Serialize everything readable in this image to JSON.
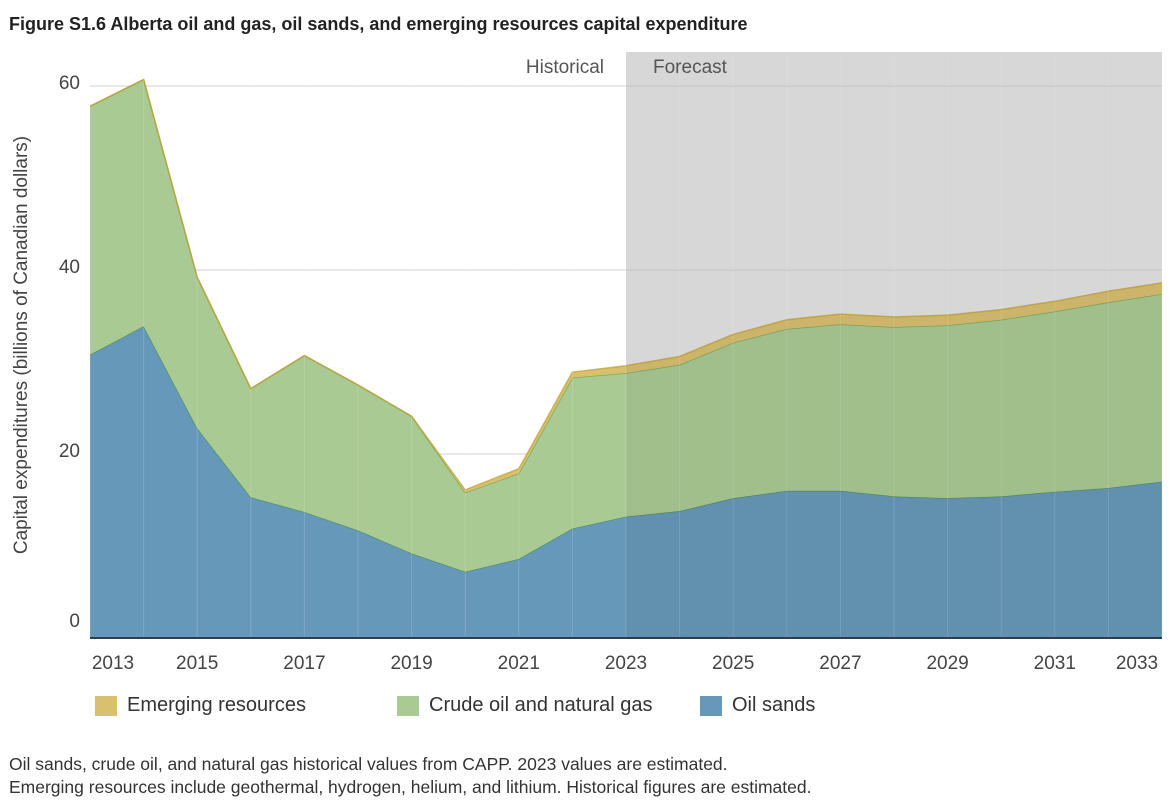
{
  "title": "Figure S1.6  Alberta oil and gas, oil sands, and emerging resources capital expenditure",
  "chart_data": {
    "type": "area",
    "stacked": true,
    "title": "Figure S1.6  Alberta oil and gas, oil sands, and emerging resources capital expenditure",
    "xlabel": "",
    "ylabel": "Capital expenditures (billions of Canadian dollars)",
    "ylim": [
      0,
      63.7
    ],
    "xlim": [
      2013,
      2033
    ],
    "yticks": [
      "0",
      "20",
      "40",
      "60"
    ],
    "xticks": [
      "2013",
      "2015",
      "2017",
      "2019",
      "2021",
      "2023",
      "2025",
      "2027",
      "2029",
      "2031",
      "2033"
    ],
    "grid": true,
    "legend_position": "bottom",
    "annotations": {
      "historical": "Historical",
      "forecast": "Forecast",
      "forecast_start": 2023
    },
    "x": [
      2013,
      2014,
      2015,
      2016,
      2017,
      2018,
      2019,
      2020,
      2021,
      2022,
      2023,
      2024,
      2025,
      2026,
      2027,
      2028,
      2029,
      2030,
      2031,
      2032,
      2033
    ],
    "series": [
      {
        "name": "Oil sands",
        "color": "#6699b9",
        "values": [
          30.8,
          33.9,
          22.8,
          15.3,
          13.7,
          11.7,
          9.2,
          7.2,
          8.6,
          11.9,
          13.2,
          13.8,
          15.2,
          16.0,
          16.0,
          15.4,
          15.2,
          15.4,
          15.9,
          16.3,
          17.0
        ]
      },
      {
        "name": "Crude oil and natural gas",
        "color": "#a9cb93",
        "values": [
          27.0,
          26.8,
          16.4,
          11.8,
          17.0,
          15.8,
          14.9,
          8.6,
          9.3,
          16.4,
          15.6,
          15.9,
          16.9,
          17.6,
          18.1,
          18.4,
          18.8,
          19.2,
          19.6,
          20.2,
          20.4
        ]
      },
      {
        "name": "Emerging resources",
        "color": "#d9c06f",
        "values": [
          0,
          0,
          0,
          0,
          0,
          0,
          0,
          0.3,
          0.5,
          0.6,
          0.8,
          0.9,
          0.9,
          1.0,
          1.1,
          1.1,
          1.1,
          1.1,
          1.1,
          1.2,
          1.2
        ]
      }
    ]
  },
  "legend": [
    "Emerging resources",
    "Crude oil and natural gas",
    "Oil sands"
  ],
  "notes": [
    "Oil sands, crude oil, and natural gas historical values from CAPP. 2023 values are estimated.",
    "Emerging resources include geothermal, hydrogen, helium, and lithium. Historical figures are estimated."
  ]
}
